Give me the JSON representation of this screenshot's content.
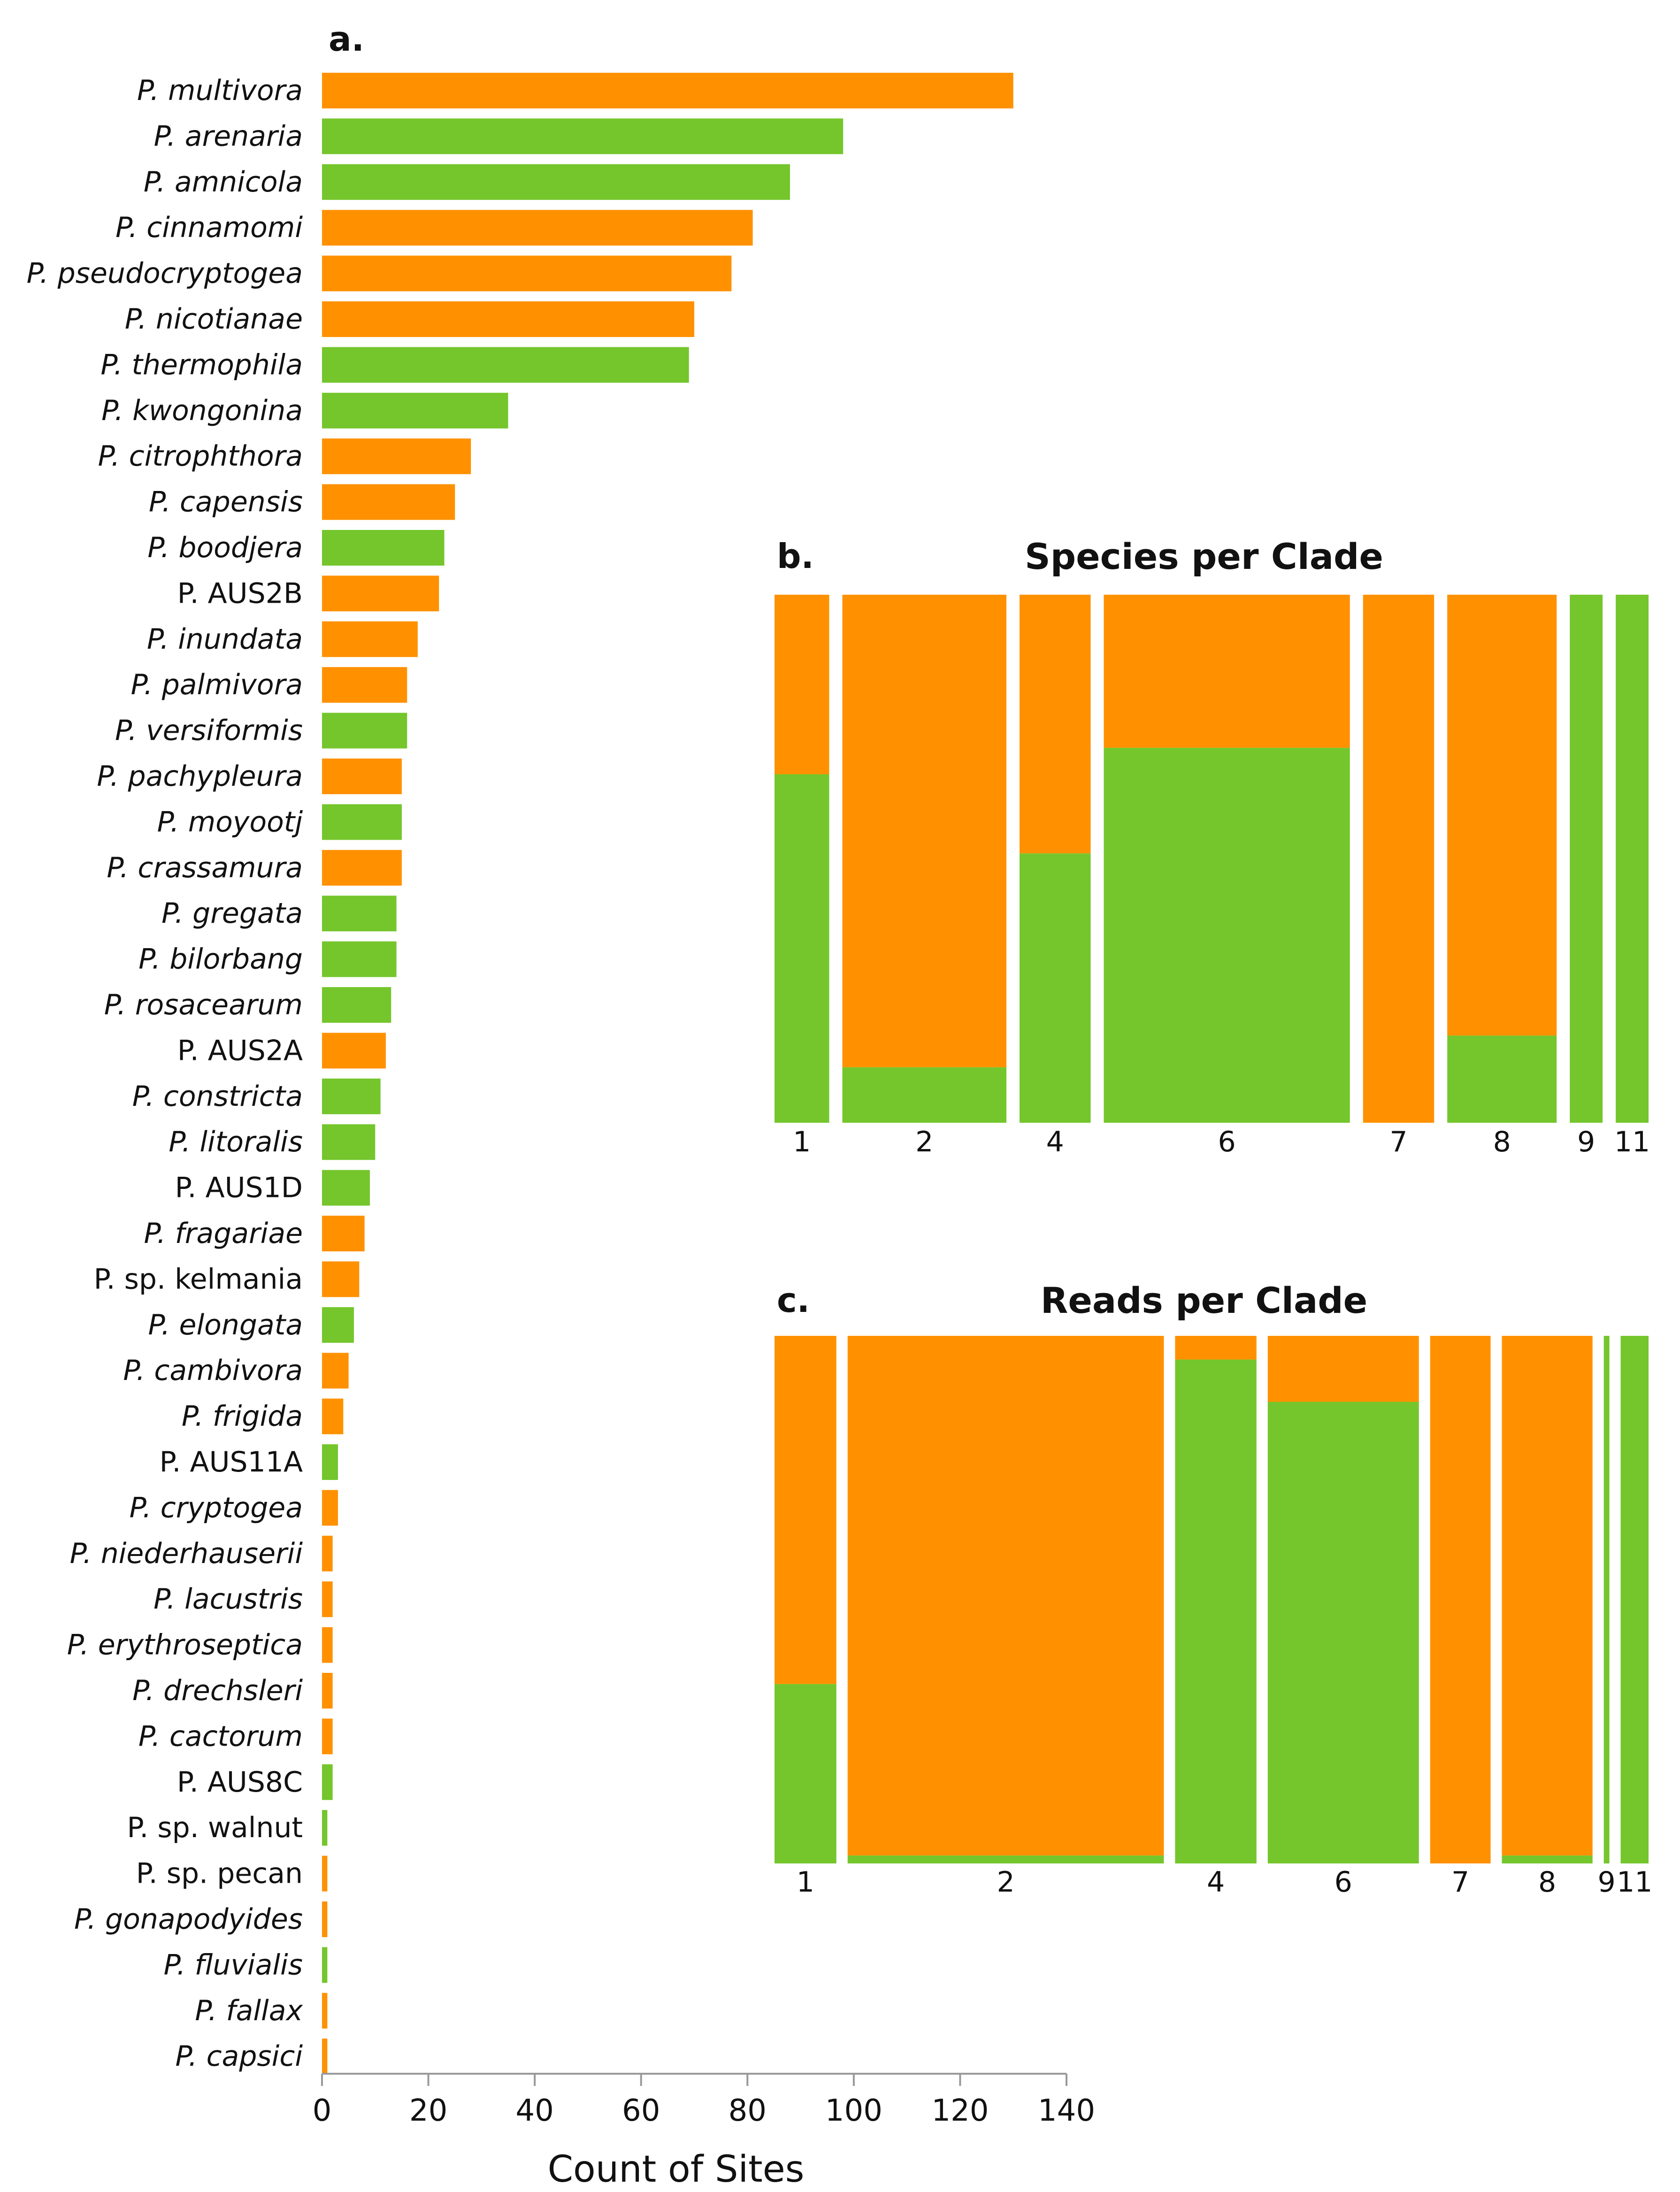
{
  "colors": {
    "orange": "#FF9100",
    "green": "#74C62C",
    "axis": "#999999"
  },
  "chart_data": [
    {
      "id": "a",
      "panel": "a.",
      "type": "bar",
      "orientation": "horizontal",
      "title": "",
      "xlabel": "Count of Sites",
      "ylabel": "",
      "xlim": [
        0,
        140
      ],
      "xticks": [
        "0",
        "20",
        "40",
        "60",
        "80",
        "100",
        "120",
        "140"
      ],
      "grid": false,
      "categories": [
        "P. multivora",
        "P. arenaria",
        "P. amnicola",
        "P. cinnamomi",
        "P. pseudocryptogea",
        "P. nicotianae",
        "P. thermophila",
        "P. kwongonina",
        "P. citrophthora",
        "P. capensis",
        "P. boodjera",
        "P. AUS2B",
        "P. inundata",
        "P. palmivora",
        "P. versiformis",
        "P. pachypleura",
        "P. moyootj",
        "P. crassamura",
        "P. gregata",
        "P. bilorbang",
        "P. rosacearum",
        "P. AUS2A",
        "P. constricta",
        "P. litoralis",
        "P. AUS1D",
        "P. fragariae",
        "P.  sp. kelmania",
        "P. elongata",
        "P. cambivora",
        "P. frigida",
        "P. AUS11A",
        "P. cryptogea",
        "P. niederhauserii",
        "P. lacustris",
        "P. erythroseptica",
        "P. drechsleri",
        "P. cactorum",
        "P. AUS8C",
        "P. sp. walnut",
        "P. sp. pecan",
        "P. gonapodyides",
        "P. fluvialis",
        "P. fallax",
        "P. capsici"
      ],
      "italic": [
        true,
        true,
        true,
        true,
        true,
        true,
        true,
        true,
        true,
        true,
        true,
        false,
        true,
        true,
        true,
        true,
        true,
        true,
        true,
        true,
        true,
        false,
        true,
        true,
        false,
        true,
        false,
        true,
        true,
        true,
        false,
        true,
        true,
        true,
        true,
        true,
        true,
        false,
        false,
        false,
        true,
        true,
        true,
        true
      ],
      "values": [
        130,
        98,
        88,
        81,
        77,
        70,
        69,
        35,
        28,
        25,
        23,
        22,
        18,
        16,
        16,
        15,
        15,
        15,
        14,
        14,
        13,
        12,
        11,
        10,
        9,
        8,
        7,
        6,
        5,
        4,
        3,
        3,
        2,
        2,
        2,
        2,
        2,
        2,
        1,
        1,
        1,
        1,
        1,
        1
      ],
      "bar_colors": [
        "orange",
        "green",
        "green",
        "orange",
        "orange",
        "orange",
        "green",
        "green",
        "orange",
        "orange",
        "green",
        "orange",
        "orange",
        "orange",
        "green",
        "orange",
        "green",
        "orange",
        "green",
        "green",
        "green",
        "orange",
        "green",
        "green",
        "green",
        "orange",
        "orange",
        "green",
        "orange",
        "orange",
        "green",
        "orange",
        "orange",
        "orange",
        "orange",
        "orange",
        "orange",
        "green",
        "green",
        "orange",
        "orange",
        "green",
        "orange",
        "orange"
      ]
    },
    {
      "id": "b",
      "panel": "b.",
      "type": "mosaic",
      "title": "Species per Clade",
      "categories": [
        "1",
        "2",
        "4",
        "6",
        "7",
        "8",
        "9",
        "11"
      ],
      "widths": [
        1,
        3,
        1.3,
        4.5,
        1.3,
        2,
        0.6,
        0.6
      ],
      "green_share": [
        0.66,
        0.105,
        0.51,
        0.71,
        0,
        0.165,
        1,
        1
      ],
      "legend": "none"
    },
    {
      "id": "c",
      "panel": "c.",
      "type": "mosaic",
      "title": "Reads per Clade",
      "categories": [
        "1",
        "2",
        "4",
        "6",
        "7",
        "8",
        "9",
        "11"
      ],
      "widths": [
        1.33,
        6.8,
        1.75,
        3.25,
        1.3,
        1.95,
        0.12,
        0.6
      ],
      "green_share": [
        0.34,
        0.015,
        0.955,
        0.875,
        0,
        0.015,
        1,
        1
      ],
      "legend": "none"
    }
  ]
}
